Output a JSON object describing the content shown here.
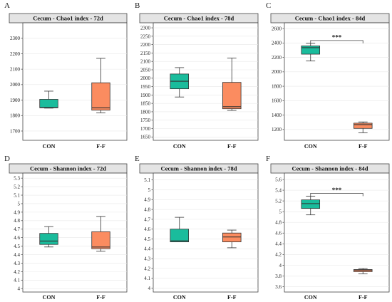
{
  "colors": {
    "con": "#1abc9c",
    "ff": "#fb8c60",
    "strip_bg": "#e4e4e4",
    "grid": "#e8e8e8"
  },
  "chart_data": [
    {
      "type": "box",
      "letter": "A",
      "title": "Cecum - Chao1 index - 72d",
      "categories": [
        "CON",
        "F-F"
      ],
      "ylim": [
        1640,
        2400
      ],
      "yticks": [
        1700,
        1800,
        1900,
        2000,
        2100,
        2200,
        2300
      ],
      "boxes": [
        {
          "min": 1848,
          "q1": 1850,
          "median": 1852,
          "q3": 1905,
          "max": 1958
        },
        {
          "min": 1818,
          "q1": 1835,
          "median": 1850,
          "q3": 2012,
          "max": 2170
        }
      ],
      "significance": ""
    },
    {
      "type": "box",
      "letter": "B",
      "title": "Cecum - Chao1 index - 78d",
      "categories": [
        "CON",
        "F-F"
      ],
      "ylim": [
        1630,
        2330
      ],
      "yticks": [
        1650,
        1700,
        1750,
        1800,
        1850,
        1900,
        1950,
        2000,
        2050,
        2100,
        2150,
        2200,
        2250,
        2300
      ],
      "boxes": [
        {
          "min": 1888,
          "q1": 1937,
          "median": 1982,
          "q3": 2025,
          "max": 2063
        },
        {
          "min": 1808,
          "q1": 1818,
          "median": 1830,
          "q3": 1975,
          "max": 2120
        }
      ],
      "significance": ""
    },
    {
      "type": "box",
      "letter": "C",
      "title": "Cecum - Chao1 index - 84d",
      "categories": [
        "CON",
        "F-F"
      ],
      "ylim": [
        1050,
        2680
      ],
      "yticks": [
        1200,
        1400,
        1600,
        1800,
        2000,
        2200,
        2400,
        2600
      ],
      "boxes": [
        {
          "min": 2150,
          "q1": 2245,
          "median": 2335,
          "q3": 2360,
          "max": 2395
        },
        {
          "min": 1155,
          "q1": 1215,
          "median": 1268,
          "q3": 1288,
          "max": 1305
        }
      ],
      "significance": "***"
    },
    {
      "type": "box",
      "letter": "D",
      "title": "Cecum - Shannon index - 72d",
      "categories": [
        "CON",
        "F-F"
      ],
      "ylim": [
        3.96,
        5.36
      ],
      "yticks": [
        4,
        4.1,
        4.2,
        4.3,
        4.4,
        4.5,
        4.6,
        4.7,
        4.8,
        4.9,
        5,
        5.1,
        5.2,
        5.3
      ],
      "boxes": [
        {
          "min": 4.49,
          "q1": 4.52,
          "median": 4.56,
          "q3": 4.65,
          "max": 4.73
        },
        {
          "min": 4.44,
          "q1": 4.47,
          "median": 4.49,
          "q3": 4.67,
          "max": 4.85
        }
      ],
      "significance": ""
    },
    {
      "type": "box",
      "letter": "E",
      "title": "Cecum - Shannon index - 78d",
      "categories": [
        "CON",
        "F-F"
      ],
      "ylim": [
        3.96,
        5.17
      ],
      "yticks": [
        4,
        4.1,
        4.2,
        4.3,
        4.4,
        4.5,
        4.6,
        4.7,
        4.8,
        4.9,
        5,
        5.1
      ],
      "boxes": [
        {
          "min": 4.47,
          "q1": 4.47,
          "median": 4.48,
          "q3": 4.6,
          "max": 4.72
        },
        {
          "min": 4.41,
          "q1": 4.47,
          "median": 4.52,
          "q3": 4.56,
          "max": 4.59
        }
      ],
      "significance": ""
    },
    {
      "type": "box",
      "letter": "F",
      "title": "Cecum - Shannon index - 84d",
      "categories": [
        "CON",
        "F-F"
      ],
      "ylim": [
        3.5,
        5.72
      ],
      "yticks": [
        3.6,
        3.8,
        4,
        4.2,
        4.4,
        4.6,
        4.8,
        5,
        5.2,
        5.4,
        5.6
      ],
      "boxes": [
        {
          "min": 4.94,
          "q1": 5.06,
          "median": 5.15,
          "q3": 5.22,
          "max": 5.29
        },
        {
          "min": 3.84,
          "q1": 3.88,
          "median": 3.91,
          "q3": 3.92,
          "max": 3.94
        }
      ],
      "significance": "***"
    }
  ]
}
